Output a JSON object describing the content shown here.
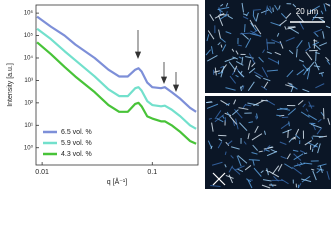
{
  "chart_data": {
    "type": "line",
    "y_label": "Intensity [a.u.]",
    "x_label": "q [Å⁻¹]",
    "x": [
      0.009,
      0.012,
      0.016,
      0.02,
      0.03,
      0.04,
      0.05,
      0.06,
      0.07,
      0.075,
      0.08,
      0.09,
      0.1,
      0.12,
      0.13,
      0.15,
      0.18,
      0.22,
      0.25
    ],
    "series": [
      {
        "name": "6.5 vol. %",
        "color": "#7d8fd8",
        "values": [
          700000,
          250000,
          100000,
          40000,
          10000,
          3000,
          1500,
          1500,
          3000,
          3500,
          2500,
          800,
          500,
          450,
          500,
          300,
          150,
          60,
          40
        ]
      },
      {
        "name": "5.9 vol. %",
        "color": "#72e0cc",
        "values": [
          200000,
          70000,
          20000,
          8000,
          1500,
          400,
          200,
          200,
          450,
          500,
          350,
          120,
          80,
          70,
          75,
          50,
          25,
          10,
          7
        ]
      },
      {
        "name": "4.3 vol. %",
        "color": "#48c338",
        "values": [
          50000,
          15000,
          4000,
          1500,
          300,
          80,
          40,
          40,
          90,
          100,
          70,
          25,
          20,
          15,
          15,
          10,
          5,
          2,
          1.5
        ]
      }
    ],
    "xscale": "log",
    "yscale": "log",
    "xlim": [
      0.0088,
      0.26
    ],
    "ylim": [
      0.17,
      2300000
    ],
    "xticks": [
      0.01,
      0.1
    ],
    "yticks": [
      {
        "value": 1,
        "label": "10⁰"
      },
      {
        "value": 10,
        "label": "10¹"
      },
      {
        "value": 100,
        "label": "10²"
      },
      {
        "value": 1000,
        "label": "10³"
      },
      {
        "value": 10000,
        "label": "10⁴"
      },
      {
        "value": 100000,
        "label": "10⁵"
      },
      {
        "value": 1000000,
        "label": "10⁶"
      }
    ],
    "legend": "lower-left"
  },
  "images": {
    "scale_bar": "20 μm"
  }
}
